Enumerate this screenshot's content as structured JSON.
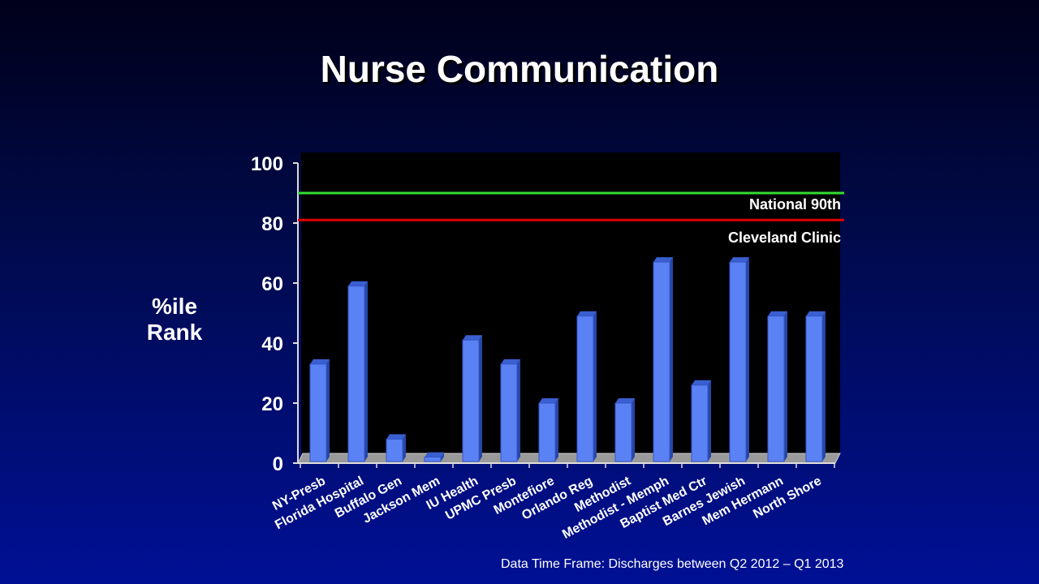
{
  "slide": {
    "title": "Nurse Communication",
    "y_axis_title_line1": "%ile",
    "y_axis_title_line2": "Rank",
    "footnote": "Data Time Frame: Discharges between Q2 2012 – Q1 2013"
  },
  "colors": {
    "bar": "#5b82f5",
    "reference_90th": "#33dd33",
    "reference_cleveland": "#e00000",
    "plot_background": "#000000"
  },
  "chart_data": {
    "type": "bar",
    "ylabel": "%ile Rank",
    "ylim": [
      0,
      100
    ],
    "yticks": [
      0,
      20,
      40,
      60,
      80,
      100
    ],
    "categories": [
      "NY-Presb",
      "Florida Hospital",
      "Buffalo Gen",
      "Jackson Mem",
      "IU Health",
      "UPMC Presb",
      "Montefiore",
      "Orlando Reg",
      "Methodist",
      "Methodist - Memph",
      "Baptist Med Ctr",
      "Barnes Jewish",
      "Mem Hermann",
      "North Shore"
    ],
    "values": [
      33,
      59,
      8,
      2,
      41,
      33,
      20,
      49,
      20,
      67,
      26,
      67,
      49,
      49
    ],
    "reference_lines": [
      {
        "label": "National  90th",
        "value": 90
      },
      {
        "label": "Cleveland Clinic",
        "value": 81
      }
    ],
    "grid": false,
    "legend": "none"
  }
}
